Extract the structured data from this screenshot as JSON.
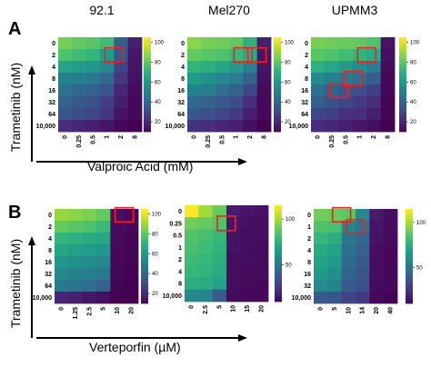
{
  "panels": [
    {
      "letter": "A",
      "ylabel": "Trametinib (nM)",
      "xlabel": "Valproic Acid (mM)"
    },
    {
      "letter": "B",
      "ylabel": "Trametinib (nM)",
      "xlabel": "Verteporfin (µM)"
    }
  ],
  "colormap": "viridis",
  "chart_data": [
    {
      "type": "heatmap",
      "title": "92.1",
      "panel": "A",
      "y_categories": [
        "0",
        "2",
        "4",
        "8",
        "16",
        "32",
        "64",
        "10,000"
      ],
      "x_categories": [
        "0",
        "0.25",
        "0.5",
        "1",
        "2",
        "8"
      ],
      "colorbar_ticks": [
        100,
        80,
        60,
        40,
        20
      ],
      "colorbar_range": [
        10,
        105
      ],
      "values": [
        [
          85,
          82,
          80,
          75,
          38,
          18
        ],
        [
          78,
          75,
          72,
          62,
          36,
          16
        ],
        [
          65,
          62,
          60,
          55,
          30,
          15
        ],
        [
          52,
          50,
          48,
          42,
          25,
          14
        ],
        [
          45,
          42,
          40,
          35,
          20,
          13
        ],
        [
          40,
          36,
          34,
          28,
          18,
          12
        ],
        [
          35,
          32,
          30,
          25,
          15,
          12
        ],
        [
          22,
          20,
          18,
          16,
          12,
          10
        ]
      ],
      "highlight_boxes": [
        {
          "row": "2",
          "cols": [
            "1",
            "2"
          ]
        }
      ]
    },
    {
      "type": "heatmap",
      "title": "Mel270",
      "panel": "A",
      "y_categories": [
        "0",
        "2",
        "4",
        "8",
        "16",
        "32",
        "64",
        "10,000"
      ],
      "x_categories": [
        "0",
        "0.25",
        "0.5",
        "1",
        "2",
        "8"
      ],
      "colorbar_ticks": [
        100,
        80,
        60,
        40,
        20
      ],
      "colorbar_range": [
        10,
        105
      ],
      "values": [
        [
          88,
          85,
          84,
          82,
          70,
          18
        ],
        [
          82,
          80,
          78,
          74,
          68,
          16
        ],
        [
          72,
          70,
          66,
          62,
          52,
          15
        ],
        [
          62,
          58,
          54,
          50,
          40,
          14
        ],
        [
          52,
          50,
          44,
          40,
          30,
          13
        ],
        [
          42,
          40,
          36,
          32,
          22,
          12
        ],
        [
          36,
          33,
          30,
          26,
          18,
          12
        ],
        [
          24,
          22,
          20,
          18,
          14,
          10
        ]
      ],
      "highlight_boxes": [
        {
          "row": "2",
          "cols": [
            "1",
            "2"
          ]
        },
        {
          "row": "2",
          "cols": [
            "2",
            "8"
          ]
        }
      ]
    },
    {
      "type": "heatmap",
      "title": "UPMM3",
      "panel": "A",
      "y_categories": [
        "0",
        "2",
        "4",
        "8",
        "16",
        "32",
        "64",
        "10,000"
      ],
      "x_categories": [
        "0",
        "0.25",
        "0.5",
        "1",
        "2",
        "8"
      ],
      "colorbar_ticks": [
        100,
        80,
        60,
        40,
        20
      ],
      "colorbar_range": [
        10,
        105
      ],
      "values": [
        [
          85,
          84,
          83,
          82,
          78,
          15
        ],
        [
          80,
          78,
          76,
          72,
          68,
          14
        ],
        [
          70,
          66,
          62,
          56,
          50,
          13
        ],
        [
          55,
          52,
          48,
          44,
          38,
          12
        ],
        [
          45,
          40,
          36,
          32,
          28,
          12
        ],
        [
          38,
          34,
          30,
          26,
          22,
          11
        ],
        [
          30,
          28,
          24,
          22,
          18,
          11
        ],
        [
          22,
          20,
          18,
          16,
          14,
          10
        ]
      ],
      "highlight_boxes": [
        {
          "row": "2",
          "cols": [
            "1",
            "2"
          ]
        },
        {
          "row": "8",
          "cols": [
            "0.5",
            "1"
          ]
        },
        {
          "row": "16",
          "cols": [
            "0.25",
            "0.5"
          ]
        }
      ]
    },
    {
      "type": "heatmap",
      "title": "",
      "panel": "B",
      "y_categories": [
        "0",
        "2",
        "4",
        "8",
        "16",
        "32",
        "64",
        "10,000"
      ],
      "x_categories": [
        "0",
        "1.25",
        "2.5",
        "5",
        "10",
        "20"
      ],
      "colorbar_ticks": [
        100,
        80,
        60,
        40,
        20
      ],
      "colorbar_range": [
        10,
        105
      ],
      "values": [
        [
          90,
          88,
          86,
          82,
          14,
          12
        ],
        [
          82,
          80,
          78,
          74,
          13,
          12
        ],
        [
          72,
          70,
          68,
          66,
          13,
          11
        ],
        [
          66,
          64,
          62,
          60,
          12,
          11
        ],
        [
          60,
          58,
          56,
          54,
          12,
          11
        ],
        [
          54,
          52,
          50,
          48,
          12,
          10
        ],
        [
          48,
          46,
          44,
          40,
          11,
          10
        ],
        [
          20,
          18,
          16,
          14,
          10,
          10
        ]
      ],
      "highlight_boxes": [
        {
          "row": "0",
          "cols": [
            "10",
            "20"
          ]
        }
      ]
    },
    {
      "type": "heatmap",
      "title": "",
      "panel": "B",
      "y_categories": [
        "0",
        "0.25",
        "0.5",
        "1",
        "2",
        "4",
        "8",
        "10,000"
      ],
      "x_categories": [
        "0",
        "2.5",
        "5",
        "10",
        "15",
        "20"
      ],
      "colorbar_ticks": [
        100,
        50
      ],
      "colorbar_range": [
        10,
        115
      ],
      "values": [
        [
          115,
          100,
          90,
          18,
          16,
          15
        ],
        [
          92,
          90,
          86,
          16,
          15,
          14
        ],
        [
          86,
          84,
          80,
          15,
          14,
          14
        ],
        [
          84,
          82,
          78,
          15,
          14,
          13
        ],
        [
          82,
          80,
          76,
          14,
          14,
          13
        ],
        [
          80,
          78,
          74,
          14,
          13,
          13
        ],
        [
          76,
          74,
          70,
          14,
          13,
          12
        ],
        [
          60,
          58,
          40,
          13,
          12,
          12
        ]
      ],
      "highlight_boxes": [
        {
          "row": "0.25",
          "cols": [
            "5",
            "10"
          ]
        }
      ]
    },
    {
      "type": "heatmap",
      "title": "",
      "panel": "B",
      "y_categories": [
        "0",
        "1",
        "2",
        "4",
        "8",
        "16",
        "32",
        "10,000"
      ],
      "x_categories": [
        "0",
        "5",
        "10",
        "14",
        "20",
        "40"
      ],
      "colorbar_ticks": [
        100,
        50
      ],
      "colorbar_range": [
        10,
        115
      ],
      "values": [
        [
          92,
          90,
          88,
          60,
          18,
          14
        ],
        [
          86,
          84,
          58,
          50,
          16,
          13
        ],
        [
          80,
          76,
          52,
          46,
          15,
          13
        ],
        [
          74,
          70,
          48,
          42,
          14,
          12
        ],
        [
          70,
          66,
          46,
          40,
          14,
          12
        ],
        [
          66,
          62,
          44,
          38,
          14,
          12
        ],
        [
          60,
          58,
          40,
          36,
          13,
          12
        ],
        [
          40,
          38,
          32,
          28,
          12,
          11
        ]
      ],
      "highlight_boxes": [
        {
          "row": "0",
          "cols": [
            "5",
            "10"
          ]
        },
        {
          "row": "1",
          "cols": [
            "10",
            "14"
          ]
        }
      ]
    }
  ]
}
